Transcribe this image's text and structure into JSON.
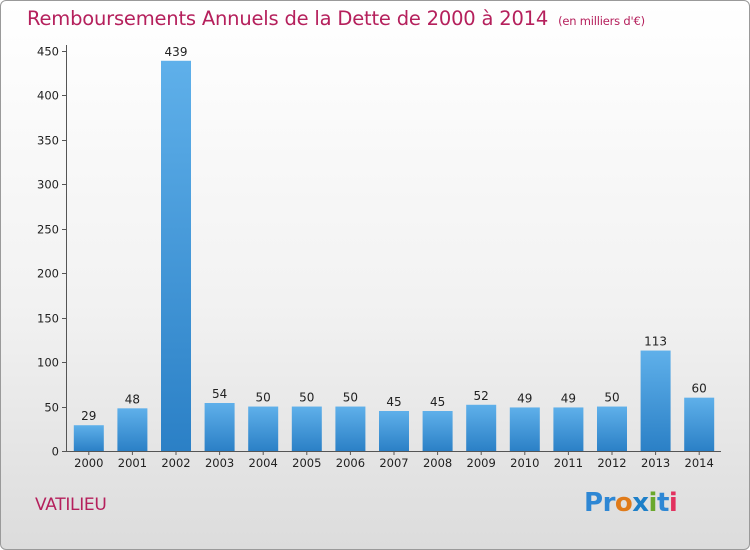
{
  "title": "Remboursements Annuels de la Dette de 2000 à 2014",
  "unit_note": "(en milliers d'€)",
  "commune": "VATILIEU",
  "logo": {
    "text": "Proxiti",
    "letters": [
      {
        "ch": "P",
        "color": "#2e87d4"
      },
      {
        "ch": "r",
        "color": "#2e87d4"
      },
      {
        "ch": "o",
        "color": "#e07b1a"
      },
      {
        "ch": "x",
        "color": "#1d7fc8"
      },
      {
        "ch": "i",
        "color": "#6aa82c"
      },
      {
        "ch": "t",
        "color": "#2e87d4"
      },
      {
        "ch": "i",
        "color": "#e2315f"
      }
    ]
  },
  "colors": {
    "title": "#b5205c",
    "bar_light": "#5fb0ea",
    "bar_dark": "#2b80c6"
  },
  "chart_data": {
    "type": "bar",
    "title": "Remboursements Annuels de la Dette de 2000 à 2014",
    "subtitle": "(en milliers d'€)",
    "categories": [
      "2000",
      "2001",
      "2002",
      "2003",
      "2004",
      "2005",
      "2006",
      "2007",
      "2008",
      "2009",
      "2010",
      "2011",
      "2012",
      "2013",
      "2014"
    ],
    "values": [
      29,
      48,
      439,
      54,
      50,
      50,
      50,
      45,
      45,
      52,
      49,
      49,
      50,
      113,
      60
    ],
    "ylim": [
      0,
      450
    ],
    "yticks": [
      0,
      50,
      100,
      150,
      200,
      250,
      300,
      350,
      400,
      450
    ],
    "grid": false,
    "data_labels": true
  }
}
